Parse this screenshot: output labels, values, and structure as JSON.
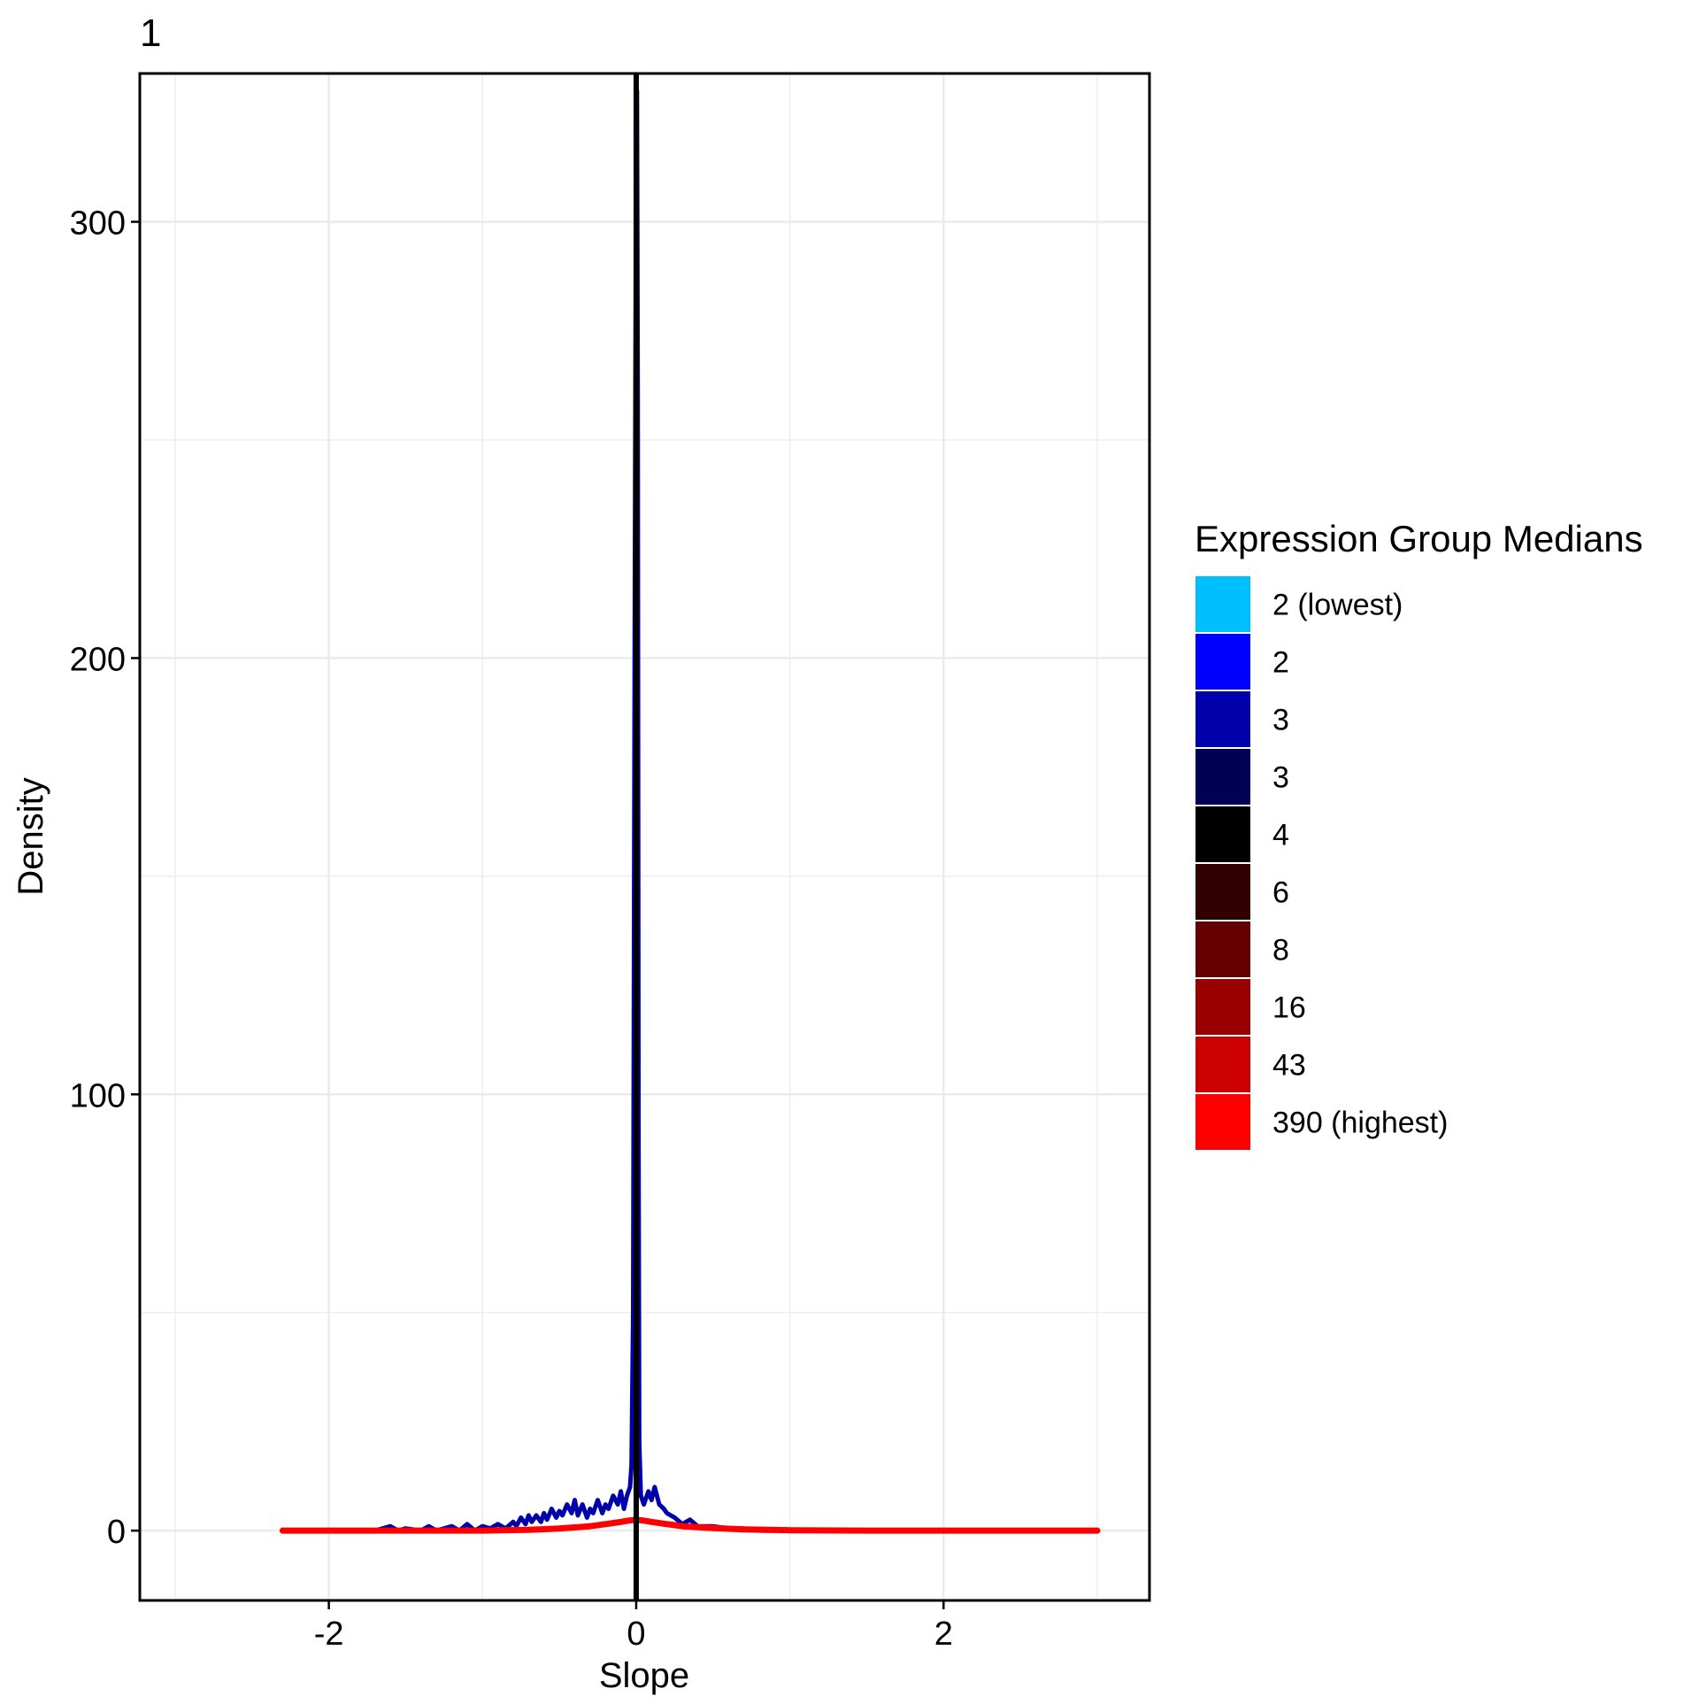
{
  "chart_data": {
    "type": "line",
    "title": "1",
    "xlabel": "Slope",
    "ylabel": "Density",
    "xlim": [
      -3.23,
      3.34
    ],
    "ylim": [
      -16,
      334
    ],
    "x_ticks": [
      -2,
      0,
      2
    ],
    "y_ticks": [
      0,
      100,
      200,
      300
    ],
    "x_tick_labels": [
      "-2",
      "0",
      "2"
    ],
    "y_tick_labels": [
      "0",
      "100",
      "200",
      "300"
    ],
    "grid": true,
    "vline": {
      "x": 0,
      "color": "#000000"
    },
    "legend": {
      "title": "Expression Group Medians",
      "placement": "right",
      "entries": [
        {
          "label": "2 (lowest)",
          "color": "#00BFFF"
        },
        {
          "label": "2",
          "color": "#0000FF"
        },
        {
          "label": "3",
          "color": "#0000AA"
        },
        {
          "label": "3",
          "color": "#000055"
        },
        {
          "label": "4",
          "color": "#000000"
        },
        {
          "label": "6",
          "color": "#330000"
        },
        {
          "label": "8",
          "color": "#660000"
        },
        {
          "label": "16",
          "color": "#990000"
        },
        {
          "label": "43",
          "color": "#CC0000"
        },
        {
          "label": "390 (highest)",
          "color": "#FF0000"
        }
      ]
    },
    "series": [
      {
        "color": "#0000AA",
        "x": [
          -2.3,
          -1.7,
          -1.6,
          -1.55,
          -1.5,
          -1.4,
          -1.35,
          -1.3,
          -1.2,
          -1.15,
          -1.1,
          -1.05,
          -1.0,
          -0.95,
          -0.9,
          -0.85,
          -0.8,
          -0.78,
          -0.75,
          -0.72,
          -0.7,
          -0.68,
          -0.65,
          -0.62,
          -0.6,
          -0.58,
          -0.55,
          -0.52,
          -0.5,
          -0.48,
          -0.45,
          -0.42,
          -0.4,
          -0.38,
          -0.35,
          -0.32,
          -0.3,
          -0.28,
          -0.25,
          -0.22,
          -0.2,
          -0.18,
          -0.15,
          -0.12,
          -0.1,
          -0.08,
          -0.06,
          -0.04,
          -0.03,
          -0.02,
          -0.01,
          0.0,
          0.005,
          0.01,
          0.015,
          0.02,
          0.03,
          0.05,
          0.08,
          0.1,
          0.12,
          0.15,
          0.18,
          0.2,
          0.25,
          0.3,
          0.35,
          0.4,
          0.5,
          0.6,
          0.7,
          0.8,
          1.0,
          1.5,
          2.0,
          3.0
        ],
        "y": [
          0,
          0,
          1,
          0,
          0.5,
          0,
          1,
          0,
          1,
          0,
          1.5,
          0,
          1,
          0.5,
          1.5,
          0.5,
          2,
          1,
          3,
          1.5,
          3.5,
          2,
          3.5,
          2,
          4,
          2.5,
          5,
          3,
          4.5,
          3.5,
          6,
          4,
          7,
          3.5,
          6,
          3,
          5,
          4,
          7,
          4,
          6,
          5,
          8,
          6,
          9,
          5,
          8,
          10,
          15,
          50,
          200,
          320,
          330,
          260,
          90,
          20,
          8,
          6,
          9,
          7,
          10,
          6,
          5,
          4,
          3,
          1.5,
          2.5,
          1,
          1,
          0.5,
          0.5,
          0,
          0,
          0,
          0,
          0
        ]
      },
      {
        "color": "#FF0000",
        "x": [
          -2.3,
          -1.5,
          -1.0,
          -0.7,
          -0.5,
          -0.3,
          -0.2,
          -0.1,
          -0.05,
          0.0,
          0.05,
          0.1,
          0.2,
          0.3,
          0.5,
          0.7,
          1.0,
          1.5,
          2.0,
          3.0
        ],
        "y": [
          0,
          0,
          0,
          0.2,
          0.5,
          1.0,
          1.5,
          2.0,
          2.3,
          2.5,
          2.3,
          2.0,
          1.5,
          1.0,
          0.6,
          0.3,
          0.1,
          0,
          0,
          0
        ]
      }
    ]
  }
}
